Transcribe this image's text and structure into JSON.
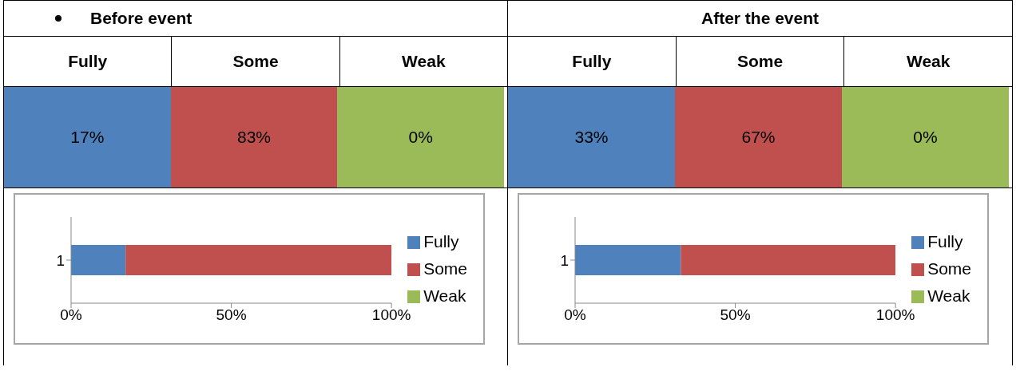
{
  "chart_data": [
    {
      "type": "bar",
      "orientation": "horizontal",
      "stacked": true,
      "title": "Before event",
      "categories": [
        "1"
      ],
      "series": [
        {
          "name": "Fully",
          "color": "#4f81bd",
          "values": [
            17
          ]
        },
        {
          "name": "Some",
          "color": "#c0504d",
          "values": [
            83
          ]
        },
        {
          "name": "Weak",
          "color": "#9bbb59",
          "values": [
            0
          ]
        }
      ],
      "annotations": [
        "17%",
        "83%",
        "0%"
      ],
      "xlim": [
        0,
        100
      ],
      "xticks": [
        {
          "value": 0,
          "label": "0%"
        },
        {
          "value": 50,
          "label": "50%"
        },
        {
          "value": 100,
          "label": "100%"
        }
      ],
      "legend": "right"
    },
    {
      "type": "bar",
      "orientation": "horizontal",
      "stacked": true,
      "title": "After the event",
      "categories": [
        "1"
      ],
      "series": [
        {
          "name": "Fully",
          "color": "#4f81bd",
          "values": [
            33
          ]
        },
        {
          "name": "Some",
          "color": "#c0504d",
          "values": [
            67
          ]
        },
        {
          "name": "Weak",
          "color": "#9bbb59",
          "values": [
            0
          ]
        }
      ],
      "annotations": [
        "33%",
        "67%",
        "0%"
      ],
      "xlim": [
        0,
        100
      ],
      "xticks": [
        {
          "value": 0,
          "label": "0%"
        },
        {
          "value": 50,
          "label": "50%"
        },
        {
          "value": 100,
          "label": "100%"
        }
      ],
      "legend": "right"
    }
  ]
}
